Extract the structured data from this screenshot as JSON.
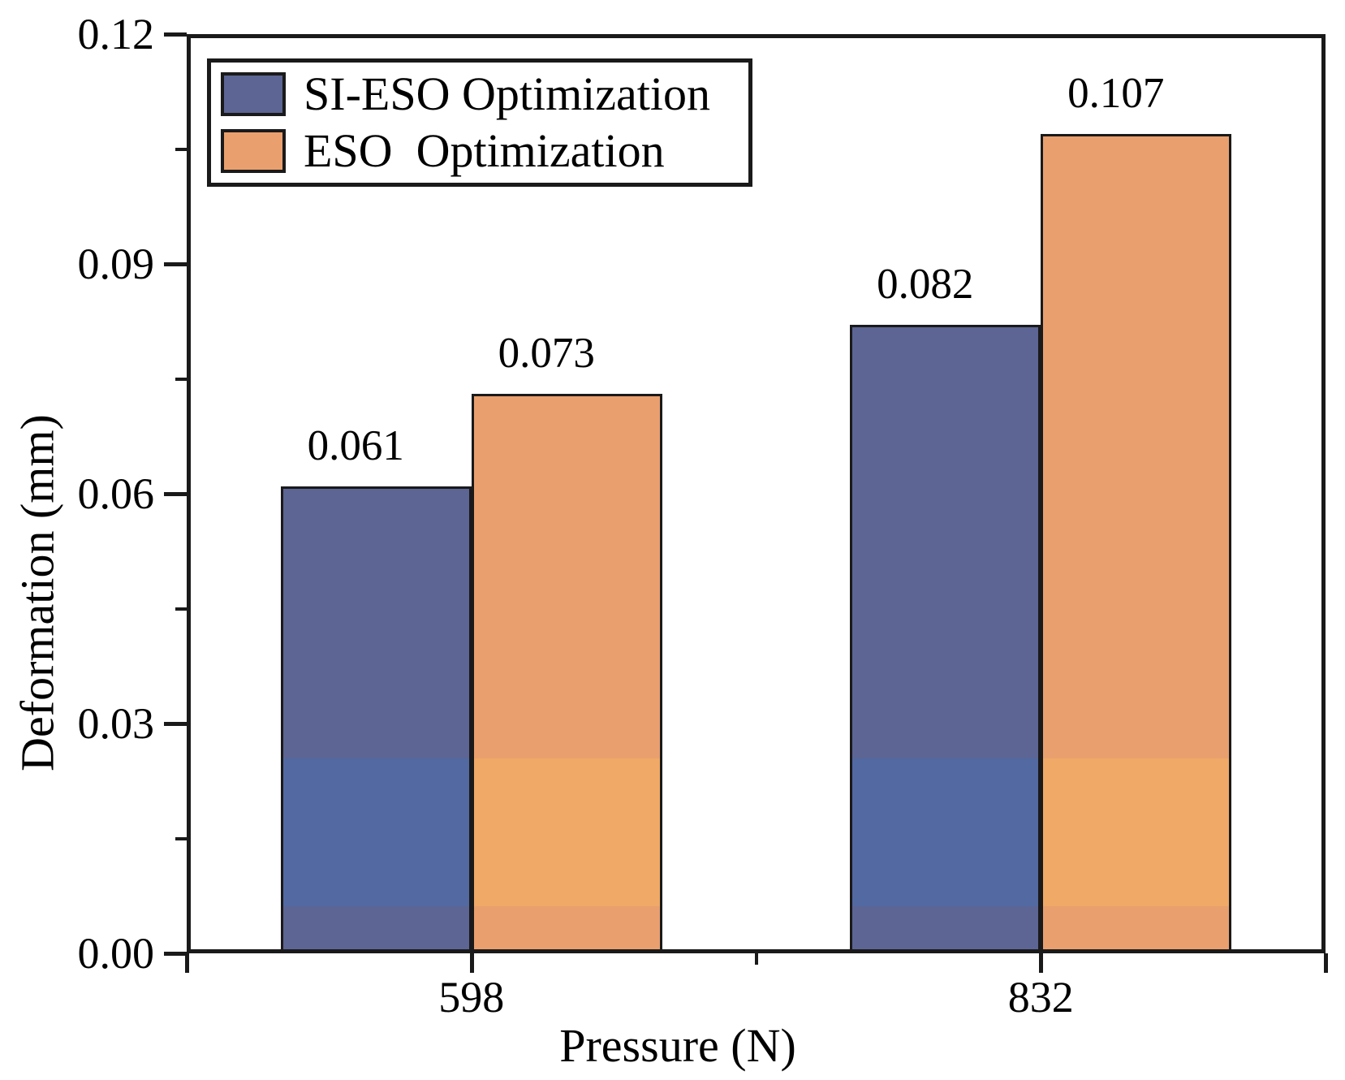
{
  "chart_data": {
    "type": "bar",
    "title": "",
    "xlabel": "Pressure (N)",
    "ylabel": "Deformation (mm)",
    "categories": [
      "598",
      "832"
    ],
    "series": [
      {
        "name": "SI-ESO Optimization",
        "values": [
          0.061,
          0.082
        ],
        "value_labels": [
          "0.061",
          "0.082"
        ],
        "color": "#5C6594",
        "color_band": "#5269A2"
      },
      {
        "name": "ESO  Optimization",
        "values": [
          0.073,
          0.107
        ],
        "value_labels": [
          "0.073",
          "0.107"
        ],
        "color": "#E9A06E",
        "color_band": "#F0A966"
      }
    ],
    "ylim": [
      0.0,
      0.12
    ],
    "yticks": [
      {
        "value": 0.0,
        "label": "0.00"
      },
      {
        "value": 0.03,
        "label": "0.03"
      },
      {
        "value": 0.06,
        "label": "0.06"
      },
      {
        "value": 0.09,
        "label": "0.09"
      },
      {
        "value": 0.12,
        "label": "0.12"
      }
    ],
    "yticks_minor": [
      0.015,
      0.045,
      0.075,
      0.105
    ],
    "legend_position": "top-left",
    "grid": false,
    "colors": {
      "axis": "#1A1A1A",
      "text": "#000000",
      "background": "#FFFFFF"
    }
  }
}
